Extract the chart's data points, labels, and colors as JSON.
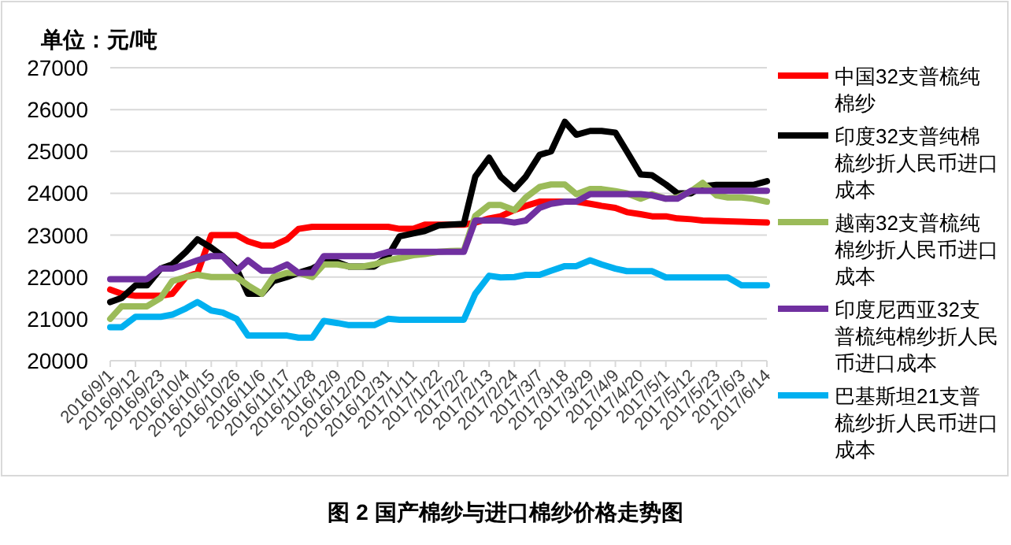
{
  "chart_data": {
    "type": "line",
    "ylabel": "单位：元/吨",
    "annotations": [
      "图 2 国产棉纱与进口棉纱价格走势图"
    ],
    "x": [
      "2016-09-01",
      "2016-09-06",
      "2016-09-12",
      "2016-09-17",
      "2016-09-23",
      "2016-09-28",
      "2016-10-04",
      "2016-10-09",
      "2016-10-15",
      "2016-10-20",
      "2016-10-26",
      "2016-10-31",
      "2016-11-06",
      "2016-11-11",
      "2016-11-17",
      "2016-11-22",
      "2016-11-28",
      "2016-12-03",
      "2016-12-09",
      "2016-12-14",
      "2016-12-20",
      "2016-12-25",
      "2016-12-31",
      "2017-01-05",
      "2017-01-11",
      "2017-01-16",
      "2017-01-22",
      "2017-01-27",
      "2017-02-02",
      "2017-02-07",
      "2017-02-13",
      "2017-02-18",
      "2017-02-24",
      "2017-03-01",
      "2017-03-07",
      "2017-03-12",
      "2017-03-18",
      "2017-03-23",
      "2017-03-29",
      "2017-04-03",
      "2017-04-09",
      "2017-04-14",
      "2017-04-20",
      "2017-04-25",
      "2017-05-01",
      "2017-05-06",
      "2017-05-12",
      "2017-05-17",
      "2017-05-23",
      "2017-05-28",
      "2017-06-03",
      "2017-06-08",
      "2017-06-14"
    ],
    "series": [
      {
        "name": "中国32支普梳纯棉纱",
        "color": "#ff0000",
        "values": [
          21700,
          21600,
          21550,
          21550,
          21550,
          21600,
          22000,
          22100,
          23000,
          23000,
          23000,
          22850,
          22750,
          22750,
          22900,
          23150,
          23200,
          23200,
          23200,
          23200,
          23200,
          23200,
          23200,
          23150,
          23150,
          23250,
          23250,
          23250,
          23250,
          23300,
          23400,
          23450,
          23600,
          23700,
          23800,
          23800,
          23800,
          23800,
          23750,
          23700,
          23650,
          23550,
          23500,
          23450,
          23450,
          23400,
          23380,
          23350,
          23340,
          23330,
          23320,
          23310,
          23300
        ]
      },
      {
        "name": "印度32支普纯棉梳纱折人民币进口成本",
        "color": "#000000",
        "values": [
          21400,
          21500,
          21800,
          21800,
          22200,
          22300,
          22600,
          22900,
          22700,
          22500,
          22200,
          21600,
          21600,
          21900,
          22000,
          22100,
          22200,
          22350,
          22350,
          22250,
          22250,
          22250,
          22500,
          22970,
          23040,
          23100,
          23230,
          23250,
          23270,
          24400,
          24850,
          24400,
          24100,
          24400,
          24920,
          25000,
          25710,
          25400,
          25490,
          25490,
          25450,
          25000,
          24450,
          24430,
          24210,
          24000,
          24000,
          24170,
          24200,
          24200,
          24200,
          24200,
          24290
        ]
      },
      {
        "name": "越南32支普梳纯棉纱折人民币进口成本",
        "color": "#9bbb59",
        "values": [
          21000,
          21300,
          21300,
          21300,
          21500,
          21900,
          22000,
          22050,
          22000,
          22000,
          22000,
          21800,
          21600,
          22000,
          22100,
          22100,
          22000,
          22300,
          22300,
          22250,
          22250,
          22300,
          22400,
          22450,
          22520,
          22550,
          22600,
          22620,
          22630,
          23460,
          23720,
          23720,
          23600,
          23900,
          24150,
          24210,
          24210,
          23980,
          24100,
          24100,
          24050,
          24000,
          23870,
          23980,
          23870,
          23900,
          24050,
          24250,
          23950,
          23900,
          23900,
          23870,
          23800
        ]
      },
      {
        "name": "印度尼西亚32支普梳纯棉纱折人民币进口成本",
        "color": "#7030a0",
        "values": [
          21950,
          21950,
          21950,
          21950,
          22200,
          22200,
          22300,
          22400,
          22500,
          22500,
          22150,
          22400,
          22150,
          22150,
          22300,
          22100,
          22100,
          22500,
          22500,
          22500,
          22500,
          22500,
          22600,
          22600,
          22600,
          22600,
          22600,
          22600,
          22600,
          23350,
          23350,
          23350,
          23300,
          23350,
          23650,
          23750,
          23800,
          23800,
          23980,
          23980,
          23980,
          23980,
          23980,
          23950,
          23870,
          23870,
          24060,
          24060,
          24060,
          24060,
          24060,
          24060,
          24060
        ]
      },
      {
        "name": "巴基斯坦21支普梳纱折人民币进口成本",
        "color": "#00b0f0",
        "values": [
          20800,
          20800,
          21050,
          21050,
          21050,
          21100,
          21250,
          21400,
          21200,
          21150,
          21000,
          20600,
          20600,
          20600,
          20600,
          20550,
          20550,
          20950,
          20900,
          20850,
          20850,
          20850,
          21000,
          20980,
          20980,
          20980,
          20980,
          20980,
          20980,
          21600,
          22030,
          21990,
          22000,
          22050,
          22050,
          22150,
          22260,
          22260,
          22400,
          22300,
          22200,
          22140,
          22140,
          22140,
          21990,
          21990,
          21990,
          21990,
          21990,
          21990,
          21800,
          21800,
          21800
        ]
      }
    ],
    "xlim": [
      "2016-09-01",
      "2017-06-14"
    ],
    "xticks": [
      {
        "value": "2016-09-01",
        "label": "2016/9/1"
      },
      {
        "value": "2016-09-12",
        "label": "2016/9/12"
      },
      {
        "value": "2016-09-23",
        "label": "2016/9/23"
      },
      {
        "value": "2016-10-04",
        "label": "2016/10/4"
      },
      {
        "value": "2016-10-15",
        "label": "2016/10/15"
      },
      {
        "value": "2016-10-26",
        "label": "2016/10/26"
      },
      {
        "value": "2016-11-06",
        "label": "2016/11/6"
      },
      {
        "value": "2016-11-17",
        "label": "2016/11/17"
      },
      {
        "value": "2016-11-28",
        "label": "2016/11/28"
      },
      {
        "value": "2016-12-09",
        "label": "2016/12/9"
      },
      {
        "value": "2016-12-20",
        "label": "2016/12/20"
      },
      {
        "value": "2016-12-31",
        "label": "2016/12/31"
      },
      {
        "value": "2017-01-11",
        "label": "2017/1/11"
      },
      {
        "value": "2017-01-22",
        "label": "2017/1/22"
      },
      {
        "value": "2017-02-02",
        "label": "2017/2/2"
      },
      {
        "value": "2017-02-13",
        "label": "2017/2/13"
      },
      {
        "value": "2017-02-24",
        "label": "2017/2/24"
      },
      {
        "value": "2017-03-07",
        "label": "2017/3/7"
      },
      {
        "value": "2017-03-18",
        "label": "2017/3/18"
      },
      {
        "value": "2017-03-29",
        "label": "2017/3/29"
      },
      {
        "value": "2017-04-09",
        "label": "2017/4/9"
      },
      {
        "value": "2017-04-20",
        "label": "2017/4/20"
      },
      {
        "value": "2017-05-01",
        "label": "2017/5/1"
      },
      {
        "value": "2017-05-12",
        "label": "2017/5/12"
      },
      {
        "value": "2017-05-23",
        "label": "2017/5/23"
      },
      {
        "value": "2017-06-03",
        "label": "2017/6/3"
      },
      {
        "value": "2017-06-14",
        "label": "2017/6/14"
      }
    ],
    "ylim": [
      20000,
      27000
    ],
    "yticks": [
      20000,
      21000,
      22000,
      23000,
      24000,
      25000,
      26000,
      27000
    ],
    "grid": "y",
    "legend": "right",
    "marker": "none",
    "line_style": "solid"
  }
}
